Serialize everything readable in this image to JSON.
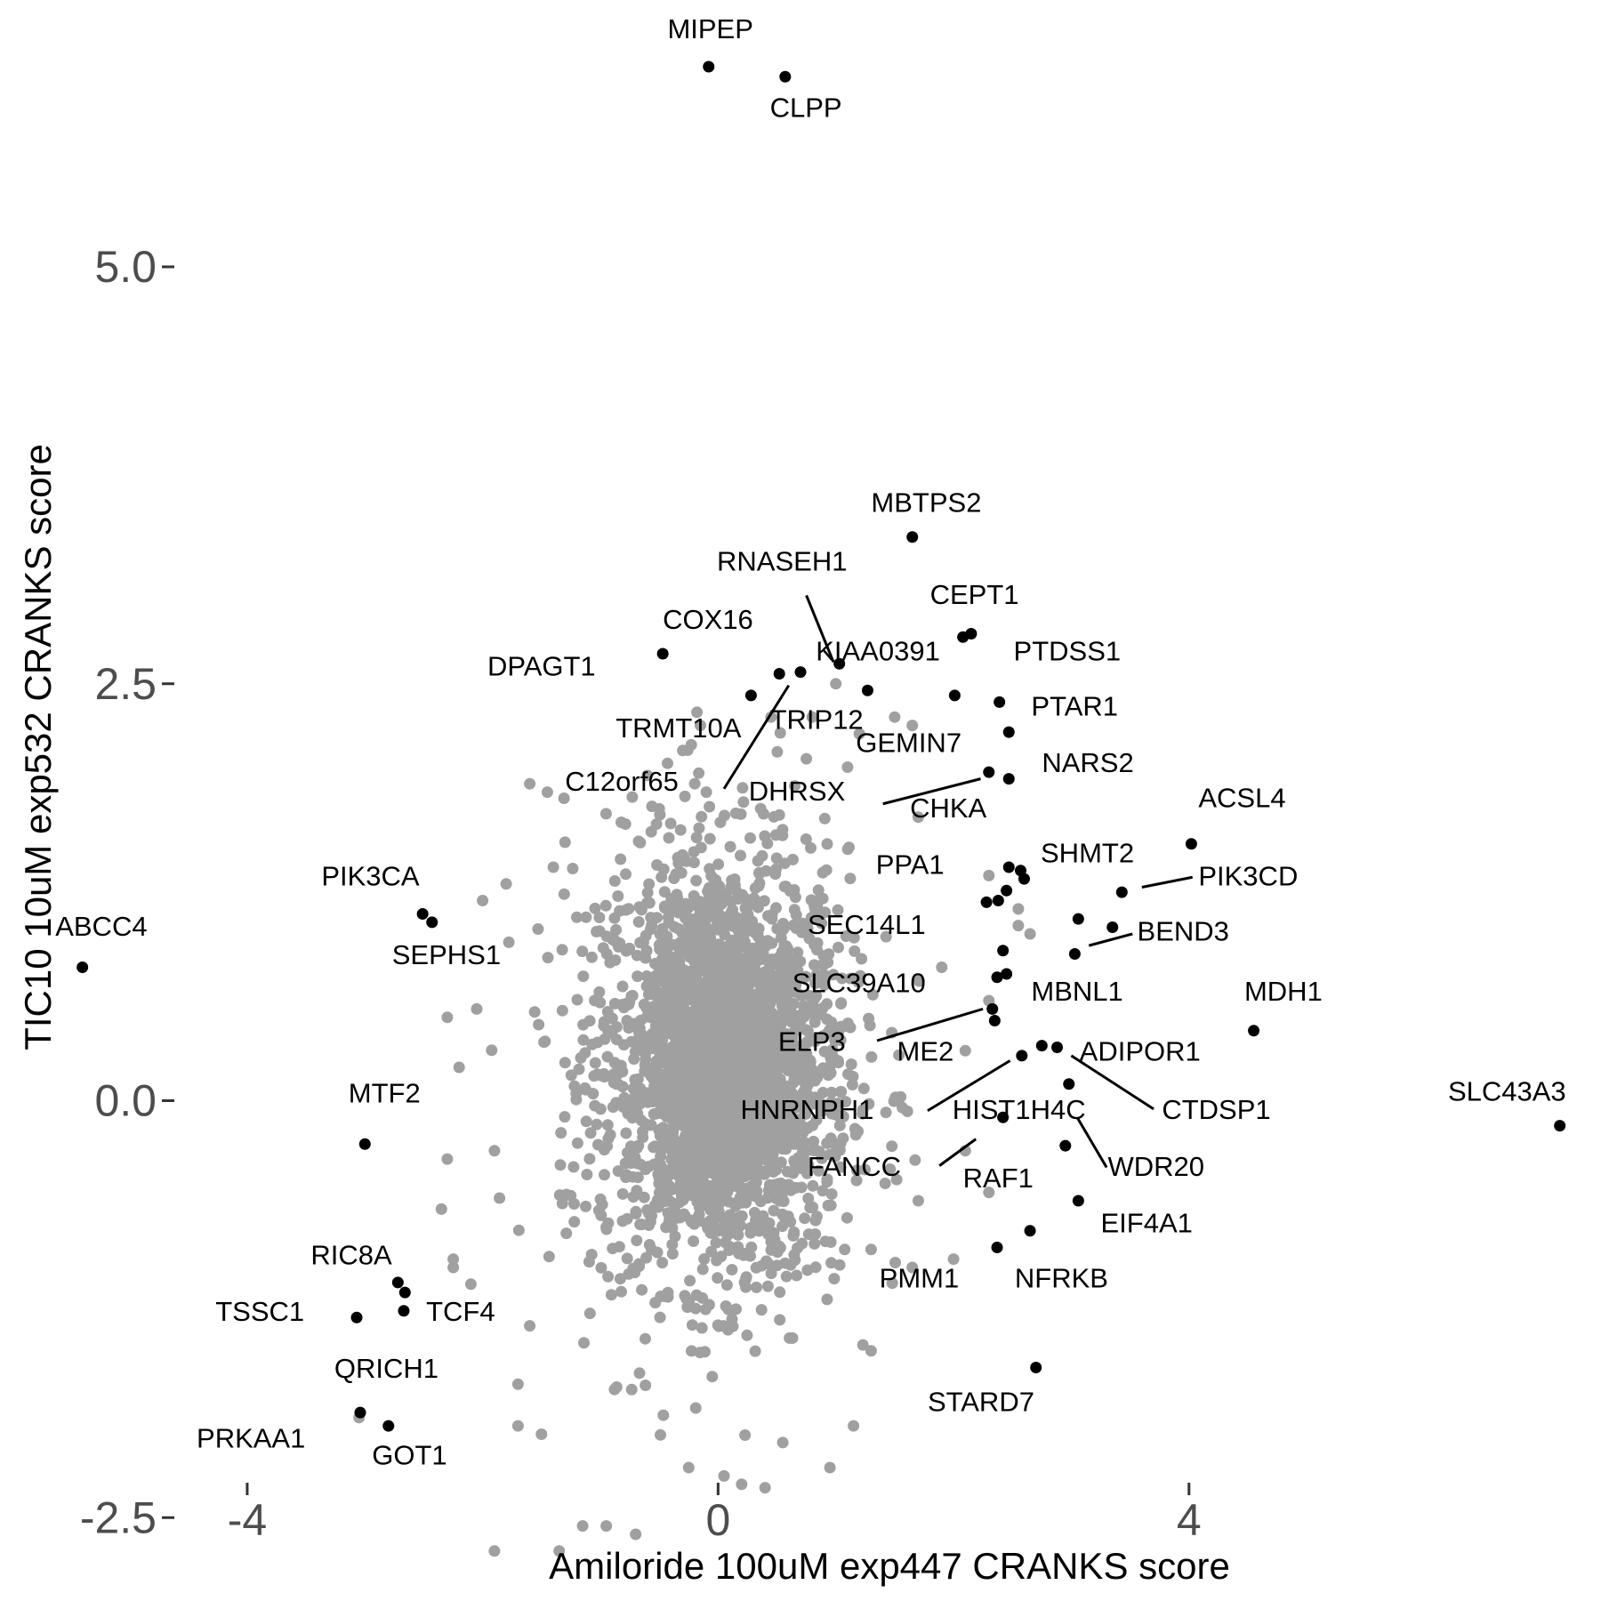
{
  "chart_data": {
    "type": "scatter",
    "title": "",
    "xlabel": "Amiloride 100uM exp447 CRANKS score",
    "ylabel": "TIC10 10uM exp532 CRANKS score",
    "xlim": [
      -6.1,
      7.5
    ],
    "ylim": [
      -3.0,
      6.6
    ],
    "x_ticks": [
      -4,
      0,
      4
    ],
    "y_ticks": [
      -2.5,
      0.0,
      2.5,
      5.0
    ],
    "x_tick_labels": [
      "-4",
      "0",
      "4"
    ],
    "y_tick_labels": [
      "-2.5",
      "0.0",
      "2.5",
      "5.0"
    ],
    "grid": false,
    "colors": {
      "background": "#cccccc",
      "highlight": "#000000",
      "tick_text": "#4d4d4d"
    },
    "background_series": {
      "name": "",
      "color": "#a0a0a0",
      "points": [
        [
          -1.6,
          1.9
        ],
        [
          -1.45,
          1.85
        ],
        [
          -1.8,
          1.3
        ],
        [
          -2.0,
          1.2
        ],
        [
          -2.05,
          0.55
        ],
        [
          -2.3,
          0.5
        ],
        [
          -2.2,
          0.2
        ],
        [
          -1.9,
          -0.3
        ],
        [
          -2.3,
          -0.35
        ],
        [
          -2.35,
          -0.65
        ],
        [
          -2.25,
          -0.95
        ],
        [
          -2.25,
          -1.0
        ],
        [
          -2.1,
          -1.1
        ],
        [
          -1.6,
          -1.35
        ],
        [
          -1.7,
          -1.7
        ],
        [
          -1.7,
          -1.95
        ],
        [
          -1.5,
          -2.0
        ],
        [
          -3.05,
          -1.9
        ],
        [
          -1.15,
          -2.55
        ],
        [
          -0.95,
          -2.55
        ],
        [
          -0.7,
          -2.6
        ],
        [
          -1.9,
          -2.7
        ],
        [
          -1.35,
          -2.7
        ],
        [
          -0.25,
          -2.2
        ],
        [
          0.05,
          -2.25
        ],
        [
          0.2,
          -2.3
        ],
        [
          0.55,
          -2.05
        ],
        [
          0.95,
          -2.2
        ],
        [
          1.15,
          -1.95
        ],
        [
          1.3,
          -1.5
        ],
        [
          1.65,
          -1.0
        ],
        [
          2.0,
          -0.95
        ],
        [
          2.3,
          -0.55
        ],
        [
          1.7,
          -0.6
        ],
        [
          2.1,
          -0.3
        ],
        [
          2.1,
          0.3
        ],
        [
          2.3,
          0.6
        ],
        [
          2.55,
          1.05
        ],
        [
          2.65,
          1.0
        ],
        [
          2.3,
          1.35
        ],
        [
          1.7,
          1.7
        ],
        [
          1.65,
          2.25
        ],
        [
          1.2,
          2.2
        ],
        [
          1.0,
          2.5
        ],
        [
          0.8,
          2.3
        ],
        [
          0.75,
          2.05
        ],
        [
          1.1,
          2.0
        ],
        [
          1.5,
          2.3
        ],
        [
          0.45,
          2.3
        ],
        [
          -0.3,
          2.1
        ],
        [
          -0.1,
          1.85
        ],
        [
          -0.6,
          1.95
        ],
        [
          -0.5,
          1.75
        ],
        [
          -1.3,
          1.55
        ],
        [
          -1.4,
          1.4
        ],
        [
          -1.2,
          1.1
        ],
        [
          -0.15,
          2.25
        ],
        [
          2.55,
          1.15
        ],
        [
          1.9,
          0.8
        ]
      ],
      "core_clusters": [
        {
          "cx": 0.05,
          "cy": 0.2,
          "sx": 1.05,
          "sy": 1.3,
          "count": 1700
        },
        {
          "cx": 0.05,
          "cy": 0.2,
          "sx": 0.55,
          "sy": 0.85,
          "count": 900
        },
        {
          "cx": 0.0,
          "cy": 0.1,
          "sx": 1.3,
          "sy": 1.55,
          "count": 350
        }
      ]
    },
    "series": [
      {
        "name": "",
        "color": "#000000",
        "points": [
          {
            "gene": "MIPEP",
            "x": -0.08,
            "y": 6.2
          },
          {
            "gene": "CLPP",
            "x": 0.57,
            "y": 6.14
          },
          {
            "gene": "MBTPS2",
            "x": 1.65,
            "y": 3.38
          },
          {
            "gene": "CEPT1",
            "x": 2.15,
            "y": 2.8
          },
          {
            "gene": "CEPT1",
            "x": 2.08,
            "y": 2.78
          },
          {
            "gene": "COX16",
            "x": -0.47,
            "y": 2.68
          },
          {
            "gene": "KIAA0391",
            "x": 1.03,
            "y": 2.62
          },
          {
            "gene": "RNASEH1",
            "x": 0.7,
            "y": 2.57
          },
          {
            "gene": "C12orf65",
            "x": 0.52,
            "y": 2.56
          },
          {
            "gene": "TRIP12",
            "x": 1.27,
            "y": 2.46
          },
          {
            "gene": "PTDSS1",
            "x": 2.01,
            "y": 2.43
          },
          {
            "gene": "TRMT10A",
            "x": 0.28,
            "y": 2.43
          },
          {
            "gene": "PTDSS1",
            "x": 2.39,
            "y": 2.39
          },
          {
            "gene": "PTAR1",
            "x": 2.47,
            "y": 2.21
          },
          {
            "gene": "GEMIN7",
            "x": 2.3,
            "y": 1.97
          },
          {
            "gene": "NARS2",
            "x": 2.47,
            "y": 1.93
          },
          {
            "gene": "ACSL4",
            "x": 4.02,
            "y": 1.54
          },
          {
            "gene": "SHMT2",
            "x": 2.47,
            "y": 1.4
          },
          {
            "gene": "SHMT2",
            "x": 2.57,
            "y": 1.38
          },
          {
            "gene": "SHMT2",
            "x": 2.6,
            "y": 1.33
          },
          {
            "gene": "PIK3CD",
            "x": 3.43,
            "y": 1.25
          },
          {
            "gene": "PPA1",
            "x": 2.45,
            "y": 1.26
          },
          {
            "gene": "PPA1",
            "x": 2.38,
            "y": 1.2
          },
          {
            "gene": "PPA1",
            "x": 2.28,
            "y": 1.19
          },
          {
            "gene": "BEND3",
            "x": 3.06,
            "y": 1.09
          },
          {
            "gene": "BEND3",
            "x": 3.35,
            "y": 1.04
          },
          {
            "gene": "BEND3",
            "x": 3.03,
            "y": 0.88
          },
          {
            "gene": "SEC14L1",
            "x": 2.42,
            "y": 0.9
          },
          {
            "gene": "SEC14L1",
            "x": 2.45,
            "y": 0.76
          },
          {
            "gene": "SEC14L1",
            "x": 2.37,
            "y": 0.74
          },
          {
            "gene": "SLC39A10",
            "x": 2.33,
            "y": 0.55
          },
          {
            "gene": "ELP3",
            "x": 2.35,
            "y": 0.48
          },
          {
            "gene": "MDH1",
            "x": 4.55,
            "y": 0.42
          },
          {
            "gene": "ME2",
            "x": 2.75,
            "y": 0.33
          },
          {
            "gene": "ADIPOR1",
            "x": 2.88,
            "y": 0.32
          },
          {
            "gene": "HNRNPH1",
            "x": 2.58,
            "y": 0.27
          },
          {
            "gene": "CTDSP1",
            "x": 2.98,
            "y": 0.1
          },
          {
            "gene": "HIST1H4C",
            "x": 2.42,
            "y": -0.1
          },
          {
            "gene": "WDR20",
            "x": 2.95,
            "y": -0.27
          },
          {
            "gene": "SLC43A3",
            "x": 7.15,
            "y": -0.15
          },
          {
            "gene": "EIF4A1",
            "x": 3.06,
            "y": -0.6
          },
          {
            "gene": "NFRKB",
            "x": 2.65,
            "y": -0.78
          },
          {
            "gene": "PMM1",
            "x": 2.37,
            "y": -0.88
          },
          {
            "gene": "STARD7",
            "x": 2.7,
            "y": -1.6
          },
          {
            "gene": "ABCC4",
            "x": -5.4,
            "y": 0.8
          },
          {
            "gene": "PIK3CA",
            "x": -2.51,
            "y": 1.12
          },
          {
            "gene": "SEPHS1",
            "x": -2.43,
            "y": 1.07
          },
          {
            "gene": "MTF2",
            "x": -3.0,
            "y": -0.26
          },
          {
            "gene": "RIC8A",
            "x": -2.72,
            "y": -1.09
          },
          {
            "gene": "RIC8A",
            "x": -2.66,
            "y": -1.15
          },
          {
            "gene": "TCF4",
            "x": -2.67,
            "y": -1.26
          },
          {
            "gene": "TSSC1",
            "x": -3.07,
            "y": -1.3
          },
          {
            "gene": "PRKAA1",
            "x": -3.04,
            "y": -1.87
          },
          {
            "gene": "GOT1",
            "x": -2.8,
            "y": -1.95
          }
        ]
      }
    ],
    "annotations": [
      {
        "text": "MIPEP",
        "x": -0.43,
        "y": 6.37,
        "anchor": "start"
      },
      {
        "text": "CLPP",
        "x": 0.44,
        "y": 5.9,
        "anchor": "start"
      },
      {
        "text": "MBTPS2",
        "x": 1.3,
        "y": 3.53,
        "anchor": "start"
      },
      {
        "text": "RNASEH1",
        "x": -0.01,
        "y": 3.18,
        "anchor": "start"
      },
      {
        "text": "CEPT1",
        "x": 1.8,
        "y": 2.98,
        "anchor": "start"
      },
      {
        "text": "COX16",
        "x": -0.47,
        "y": 2.83,
        "anchor": "start"
      },
      {
        "text": "KIAA0391",
        "x": 0.83,
        "y": 2.64,
        "anchor": "start"
      },
      {
        "text": "PTDSS1",
        "x": 2.51,
        "y": 2.64,
        "anchor": "start"
      },
      {
        "text": "DPAGT1",
        "x": -1.96,
        "y": 2.55,
        "anchor": "start"
      },
      {
        "text": "PTAR1",
        "x": 2.66,
        "y": 2.31,
        "anchor": "start"
      },
      {
        "text": "TRIP12",
        "x": 0.44,
        "y": 2.23,
        "anchor": "start"
      },
      {
        "text": "TRMT10A",
        "x": -0.87,
        "y": 2.18,
        "anchor": "start"
      },
      {
        "text": "GEMIN7",
        "x": 1.17,
        "y": 2.09,
        "anchor": "start"
      },
      {
        "text": "NARS2",
        "x": 2.75,
        "y": 1.97,
        "anchor": "start"
      },
      {
        "text": "C12orf65",
        "x": -1.3,
        "y": 1.86,
        "anchor": "start"
      },
      {
        "text": "DHRSX",
        "x": 0.26,
        "y": 1.8,
        "anchor": "start"
      },
      {
        "text": "ACSL4",
        "x": 4.08,
        "y": 1.76,
        "anchor": "start"
      },
      {
        "text": "CHKA",
        "x": 1.63,
        "y": 1.7,
        "anchor": "start"
      },
      {
        "text": "SHMT2",
        "x": 2.74,
        "y": 1.43,
        "anchor": "start"
      },
      {
        "text": "PPA1",
        "x": 1.34,
        "y": 1.36,
        "anchor": "start"
      },
      {
        "text": "PIK3CD",
        "x": 4.08,
        "y": 1.29,
        "anchor": "start"
      },
      {
        "text": "PIK3CA",
        "x": -3.37,
        "y": 1.29,
        "anchor": "start"
      },
      {
        "text": "ABCC4",
        "x": -5.63,
        "y": 0.99,
        "anchor": "start"
      },
      {
        "text": "BEND3",
        "x": 3.56,
        "y": 0.96,
        "anchor": "start"
      },
      {
        "text": "SEC14L1",
        "x": 0.76,
        "y": 1.0,
        "anchor": "start"
      },
      {
        "text": "SEPHS1",
        "x": -2.77,
        "y": 0.82,
        "anchor": "start"
      },
      {
        "text": "SLC39A10",
        "x": 0.63,
        "y": 0.65,
        "anchor": "start"
      },
      {
        "text": "MBNL1",
        "x": 2.66,
        "y": 0.6,
        "anchor": "start"
      },
      {
        "text": "MDH1",
        "x": 4.47,
        "y": 0.6,
        "anchor": "start"
      },
      {
        "text": "ELP3",
        "x": 0.51,
        "y": 0.3,
        "anchor": "start"
      },
      {
        "text": "ME2",
        "x": 1.52,
        "y": 0.24,
        "anchor": "start"
      },
      {
        "text": "ADIPOR1",
        "x": 3.07,
        "y": 0.24,
        "anchor": "start"
      },
      {
        "text": "SLC43A3",
        "x": 6.2,
        "y": 0.0,
        "anchor": "start"
      },
      {
        "text": "MTF2",
        "x": -3.14,
        "y": -0.01,
        "anchor": "start"
      },
      {
        "text": "HNRNPH1",
        "x": 0.19,
        "y": -0.11,
        "anchor": "start"
      },
      {
        "text": "HIST1H4C",
        "x": 1.99,
        "y": -0.11,
        "anchor": "start"
      },
      {
        "text": "CTDSP1",
        "x": 3.77,
        "y": -0.11,
        "anchor": "start"
      },
      {
        "text": "FANCC",
        "x": 0.76,
        "y": -0.45,
        "anchor": "start"
      },
      {
        "text": "WDR20",
        "x": 3.31,
        "y": -0.45,
        "anchor": "start"
      },
      {
        "text": "RAF1",
        "x": 2.08,
        "y": -0.52,
        "anchor": "start"
      },
      {
        "text": "EIF4A1",
        "x": 3.25,
        "y": -0.79,
        "anchor": "start"
      },
      {
        "text": "RIC8A",
        "x": -3.46,
        "y": -0.98,
        "anchor": "start"
      },
      {
        "text": "PMM1",
        "x": 1.37,
        "y": -1.12,
        "anchor": "start"
      },
      {
        "text": "NFRKB",
        "x": 2.52,
        "y": -1.12,
        "anchor": "start"
      },
      {
        "text": "TSSC1",
        "x": -4.27,
        "y": -1.32,
        "anchor": "start"
      },
      {
        "text": "TCF4",
        "x": -2.48,
        "y": -1.32,
        "anchor": "start"
      },
      {
        "text": "QRICH1",
        "x": -3.26,
        "y": -1.66,
        "anchor": "start"
      },
      {
        "text": "STARD7",
        "x": 1.78,
        "y": -1.86,
        "anchor": "start"
      },
      {
        "text": "PRKAA1",
        "x": -4.43,
        "y": -2.08,
        "anchor": "start"
      },
      {
        "text": "GOT1",
        "x": -2.94,
        "y": -2.18,
        "anchor": "start"
      }
    ],
    "connectors": [
      {
        "from": [
          0.75,
          3.03
        ],
        "to": [
          0.98,
          2.63
        ]
      },
      {
        "from": [
          0.6,
          2.49
        ],
        "to": [
          0.05,
          1.87
        ]
      },
      {
        "from": [
          1.4,
          1.78
        ],
        "to": [
          2.23,
          1.93
        ]
      },
      {
        "from": [
          3.6,
          1.28
        ],
        "to": [
          4.03,
          1.34
        ]
      },
      {
        "from": [
          3.15,
          0.93
        ],
        "to": [
          3.52,
          1.0
        ]
      },
      {
        "from": [
          1.35,
          0.36
        ],
        "to": [
          2.25,
          0.55
        ]
      },
      {
        "from": [
          1.78,
          -0.06
        ],
        "to": [
          2.48,
          0.24
        ]
      },
      {
        "from": [
          3.0,
          0.27
        ],
        "to": [
          3.7,
          -0.05
        ]
      },
      {
        "from": [
          3.05,
          -0.1
        ],
        "to": [
          3.3,
          -0.4
        ]
      },
      {
        "from": [
          1.88,
          -0.39
        ],
        "to": [
          2.19,
          -0.23
        ]
      }
    ]
  }
}
